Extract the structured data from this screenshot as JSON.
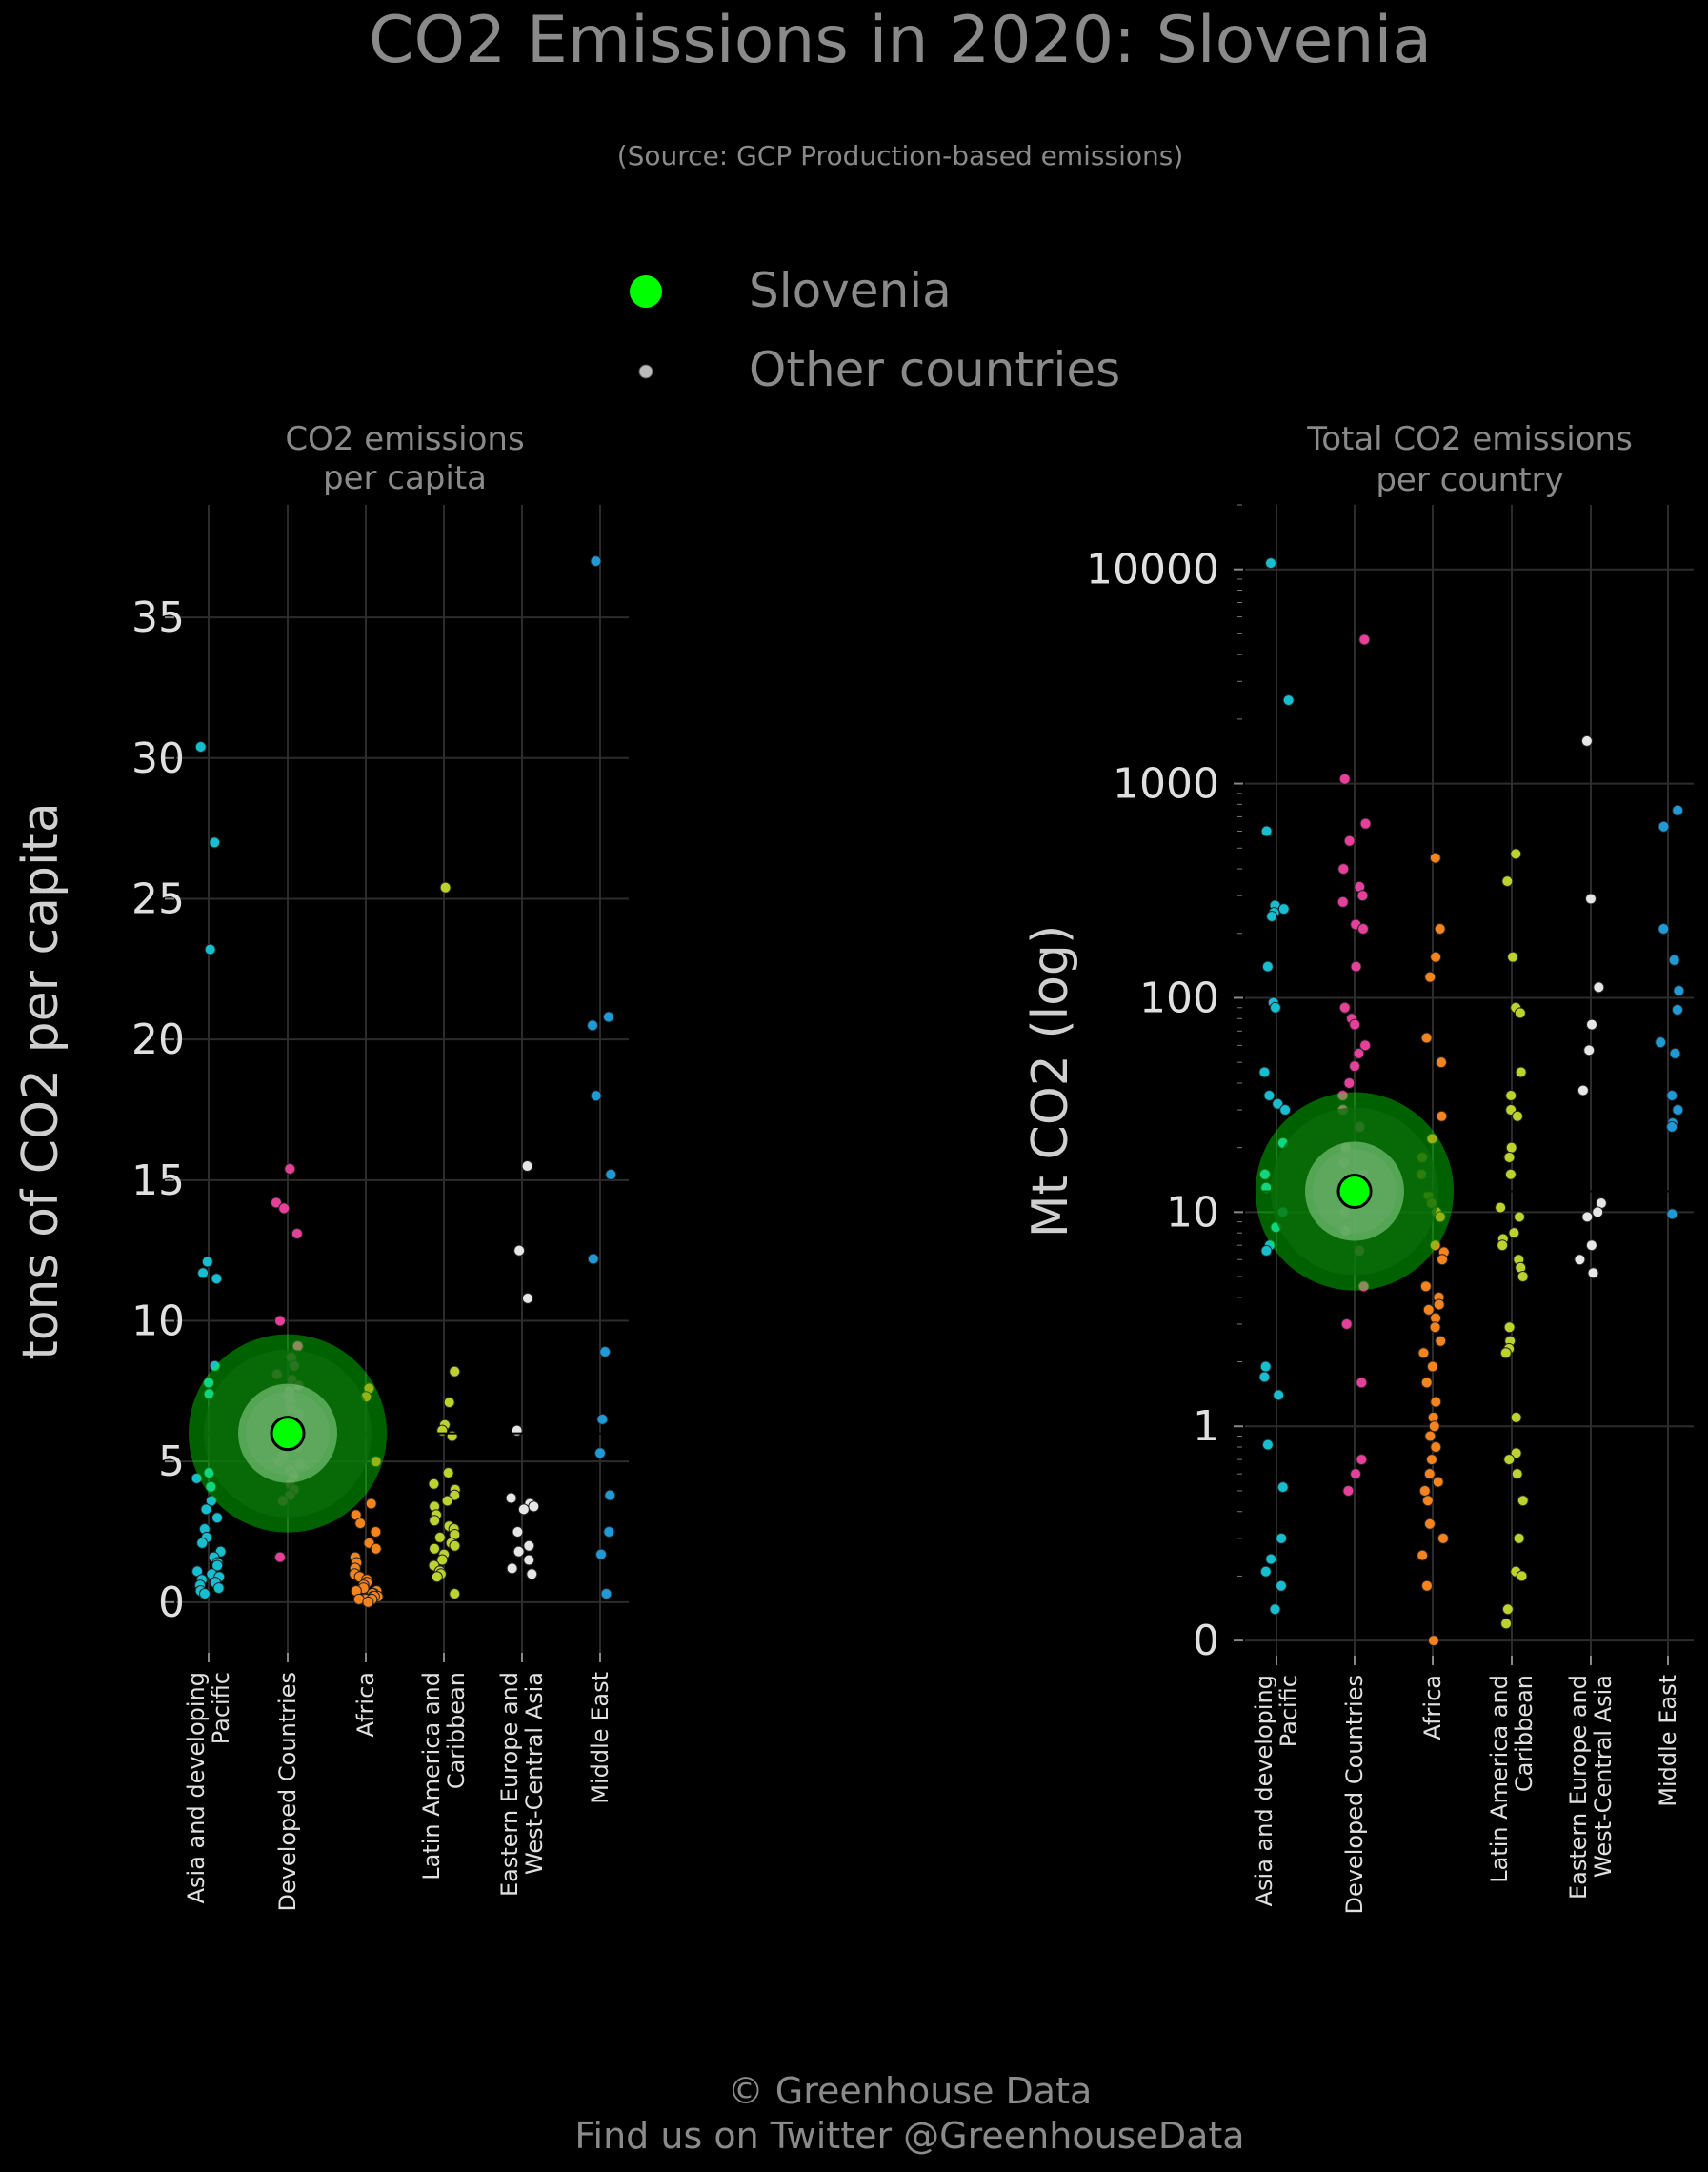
{
  "title": "CO2 Emissions in 2020: Slovenia",
  "subtitle": "(Source: GCP Production-based emissions)",
  "legend": {
    "highlight_label": "Slovenia",
    "other_label": "Other countries",
    "highlight_color": "#00ff00",
    "other_color": "#bbbbbb"
  },
  "footer": {
    "line1": "© Greenhouse Data",
    "line2": "Find us on Twitter @GreenhouseData"
  },
  "colors": {
    "Asia and developing Pacific": "#17becf",
    "Developed Countries": "#e7409a",
    "Africa": "#f5841f",
    "Latin America and Caribbean": "#bcd22f",
    "Eastern Europe and West-Central Asia": "#e6e6e6",
    "Middle East": "#1f9ad6"
  },
  "chart_data": [
    {
      "type": "scatter",
      "panel_title": [
        "CO2 emissions",
        "per capita"
      ],
      "ylabel": "tons of CO2 per capita",
      "ylim": [
        -1.8,
        39
      ],
      "yticks": [
        0,
        5,
        10,
        15,
        20,
        25,
        30,
        35
      ],
      "ytick_labels": [
        "0",
        "5",
        "10",
        "15",
        "20",
        "25",
        "30",
        "35"
      ],
      "categories": [
        "Asia and developing Pacific",
        "Developed Countries",
        "Africa",
        "Latin America and Caribbean",
        "Eastern Europe and West-Central Asia",
        "Middle East"
      ],
      "category_labels": [
        [
          "Asia and developing",
          "Pacific"
        ],
        [
          "Developed Countries"
        ],
        [
          "Africa"
        ],
        [
          "Latin America and",
          "Caribbean"
        ],
        [
          "Eastern Europe and",
          "West-Central Asia"
        ],
        [
          "Middle East"
        ]
      ],
      "grid": true,
      "highlight": {
        "country": "Slovenia",
        "category": "Developed Countries",
        "value": 6.0
      },
      "series": [
        {
          "category": "Asia and developing Pacific",
          "values": [
            30.4,
            27.0,
            23.2,
            12.1,
            11.7,
            11.5,
            8.4,
            7.8,
            7.4,
            4.6,
            4.4,
            4.1,
            3.6,
            3.3,
            3.0,
            2.6,
            2.3,
            2.1,
            1.8,
            1.6,
            1.4,
            1.3,
            1.1,
            1.0,
            0.9,
            0.8,
            0.7,
            0.6,
            0.5,
            0.4,
            0.3
          ]
        },
        {
          "category": "Developed Countries",
          "values": [
            15.4,
            14.2,
            14.0,
            13.1,
            10.0,
            9.1,
            8.7,
            8.4,
            8.1,
            7.9,
            7.7,
            7.5,
            7.3,
            7.1,
            6.9,
            6.7,
            6.4,
            6.2,
            5.8,
            5.5,
            5.2,
            5.0,
            4.9,
            4.7,
            4.5,
            4.2,
            4.0,
            3.8,
            3.6,
            1.6
          ]
        },
        {
          "category": "Africa",
          "values": [
            7.6,
            7.3,
            5.0,
            3.5,
            3.1,
            2.8,
            2.5,
            2.1,
            1.9,
            1.6,
            1.4,
            1.2,
            1.0,
            0.9,
            0.8,
            0.7,
            0.6,
            0.5,
            0.4,
            0.4,
            0.3,
            0.3,
            0.2,
            0.2,
            0.2,
            0.1,
            0.1,
            0.1,
            0.1,
            0.1,
            0.1,
            0.0
          ]
        },
        {
          "category": "Latin America and Caribbean",
          "values": [
            25.4,
            8.2,
            7.1,
            6.3,
            6.1,
            5.9,
            4.6,
            4.2,
            4.0,
            3.8,
            3.6,
            3.4,
            3.1,
            2.9,
            2.7,
            2.6,
            2.4,
            2.3,
            2.1,
            2.0,
            1.9,
            1.7,
            1.5,
            1.3,
            1.1,
            1.0,
            0.9,
            0.3
          ]
        },
        {
          "category": "Eastern Europe and West-Central Asia",
          "values": [
            15.5,
            12.5,
            10.8,
            6.1,
            3.7,
            3.5,
            3.4,
            3.3,
            2.5,
            2.0,
            1.8,
            1.5,
            1.2,
            1.0
          ]
        },
        {
          "category": "Middle East",
          "values": [
            37.0,
            20.8,
            20.5,
            18.0,
            15.2,
            12.2,
            8.9,
            6.5,
            5.3,
            3.8,
            2.5,
            1.7,
            0.3
          ]
        }
      ]
    },
    {
      "type": "scatter",
      "panel_title": [
        "Total CO2 emissions",
        "per country"
      ],
      "ylabel": "Mt CO2 (log)",
      "yscale": "log",
      "ylim": [
        0.085,
        20000
      ],
      "yticks": [
        0.1,
        1,
        10,
        100,
        1000,
        10000
      ],
      "ytick_labels": [
        "0",
        "1",
        "10",
        "100",
        "1000",
        "10000"
      ],
      "categories": [
        "Asia and developing Pacific",
        "Developed Countries",
        "Africa",
        "Latin America and Caribbean",
        "Eastern Europe and West-Central Asia",
        "Middle East"
      ],
      "category_labels": [
        [
          "Asia and developing",
          "Pacific"
        ],
        [
          "Developed Countries"
        ],
        [
          "Africa"
        ],
        [
          "Latin America and",
          "Caribbean"
        ],
        [
          "Eastern Europe and",
          "West-Central Asia"
        ],
        [
          "Middle East"
        ]
      ],
      "grid": true,
      "highlight": {
        "country": "Slovenia",
        "category": "Developed Countries",
        "value": 12.5
      },
      "series": [
        {
          "category": "Asia and developing Pacific",
          "values": [
            10700,
            2450,
            600,
            270,
            260,
            250,
            240,
            140,
            95,
            90,
            45,
            35,
            32,
            30,
            21,
            15,
            13,
            10,
            8.5,
            7,
            6.6,
            1.9,
            1.7,
            1.4,
            0.82,
            0.52,
            0.3,
            0.24,
            0.21,
            0.18,
            0.14
          ]
        },
        {
          "category": "Developed Countries",
          "values": [
            4700,
            1050,
            650,
            540,
            400,
            330,
            300,
            280,
            220,
            210,
            140,
            90,
            80,
            75,
            60,
            55,
            48,
            40,
            35,
            30,
            25,
            20,
            17,
            15,
            10,
            8.2,
            6.6,
            4.5,
            3.0,
            1.6,
            0.7,
            0.6,
            0.5
          ]
        },
        {
          "category": "Africa",
          "values": [
            450,
            210,
            155,
            125,
            65,
            50,
            28,
            22,
            18,
            15,
            12,
            11,
            10,
            9.5,
            7,
            6.5,
            6,
            4.5,
            4,
            3.7,
            3.5,
            3.2,
            2.9,
            2.5,
            2.2,
            1.9,
            1.6,
            1.3,
            1.1,
            1.0,
            0.9,
            0.8,
            0.7,
            0.6,
            0.55,
            0.5,
            0.45,
            0.35,
            0.3,
            0.25,
            0.18,
            0.1
          ]
        },
        {
          "category": "Latin America and Caribbean",
          "values": [
            470,
            350,
            155,
            90,
            85,
            45,
            35,
            30,
            28,
            20,
            18,
            15,
            10.5,
            9.5,
            8,
            7.5,
            7,
            6,
            5.5,
            5,
            2.9,
            2.5,
            2.3,
            2.2,
            1.1,
            0.75,
            0.7,
            0.6,
            0.45,
            0.3,
            0.21,
            0.2,
            0.14,
            0.12
          ]
        },
        {
          "category": "Eastern Europe and West-Central Asia",
          "values": [
            1580,
            290,
            112,
            75,
            57,
            37,
            11,
            10,
            9.5,
            7,
            6,
            5.2
          ]
        },
        {
          "category": "Middle East",
          "values": [
            750,
            630,
            210,
            150,
            108,
            88,
            62,
            55,
            35,
            30,
            26,
            25,
            9.8
          ]
        }
      ]
    }
  ]
}
